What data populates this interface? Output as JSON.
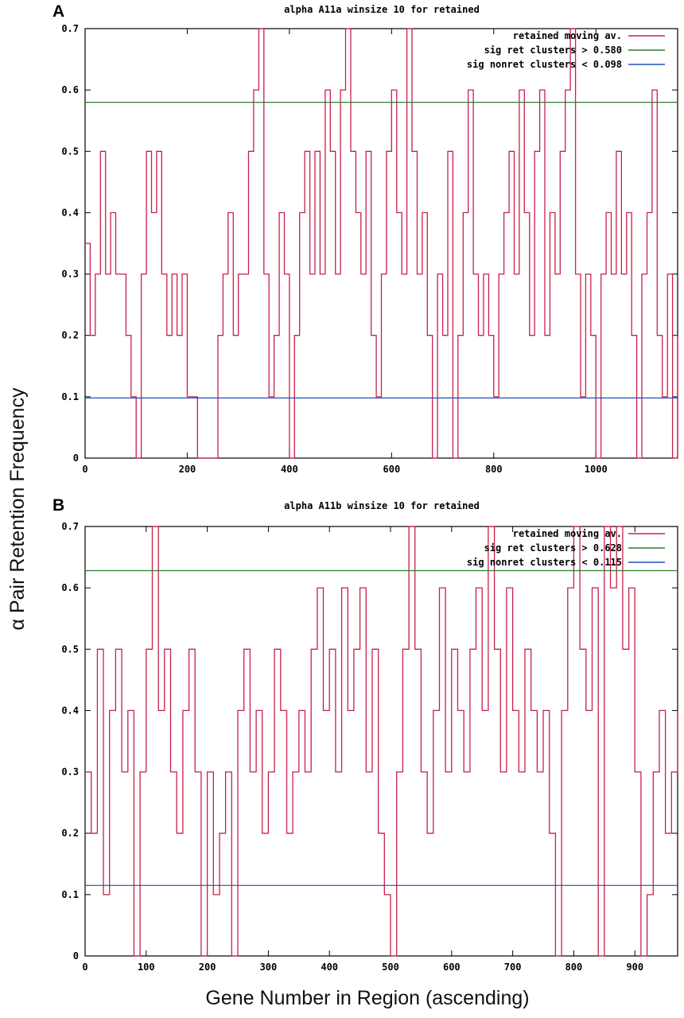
{
  "ylabel": "α Pair Retention Frequency",
  "xlabel": "Gene Number in Region (ascending)",
  "colors": {
    "retained": "#c8204a",
    "sig_ret": "#2e7d32",
    "sig_nonret": "#1f4fbf",
    "axis": "#000000"
  },
  "chart_data": [
    {
      "panel_label": "A",
      "type": "line",
      "title": "alpha A11a winsize 10 for retained",
      "xlim": [
        0,
        1160
      ],
      "ylim": [
        0,
        0.7
      ],
      "xticks": [
        0,
        200,
        400,
        600,
        800,
        1000
      ],
      "xtick_labels": [
        "0",
        "200",
        "400",
        "600",
        "800",
        "1000"
      ],
      "yticks": [
        0,
        0.1,
        0.2,
        0.3,
        0.4,
        0.5,
        0.6,
        0.7
      ],
      "ytick_labels": [
        "0",
        "0.1",
        "0.2",
        "0.3",
        "0.4",
        "0.5",
        "0.6",
        "0.7"
      ],
      "legend_position": "top-right",
      "legend": [
        "retained moving av.",
        "sig ret clusters > 0.580",
        "sig nonret clusters < 0.098"
      ],
      "thresholds": {
        "sig_ret": 0.58,
        "sig_nonret": 0.098
      },
      "series": [
        {
          "name": "retained moving av.",
          "x": [
            0,
            10,
            20,
            30,
            40,
            50,
            60,
            70,
            80,
            90,
            100,
            110,
            120,
            130,
            140,
            150,
            160,
            170,
            180,
            190,
            200,
            210,
            220,
            230,
            240,
            250,
            260,
            270,
            280,
            290,
            300,
            310,
            320,
            330,
            340,
            350,
            360,
            370,
            380,
            390,
            400,
            410,
            420,
            430,
            440,
            450,
            460,
            470,
            480,
            490,
            500,
            510,
            520,
            530,
            540,
            550,
            560,
            570,
            580,
            590,
            600,
            610,
            620,
            630,
            640,
            650,
            660,
            670,
            680,
            690,
            700,
            710,
            720,
            730,
            740,
            750,
            760,
            770,
            780,
            790,
            800,
            810,
            820,
            830,
            840,
            850,
            860,
            870,
            880,
            890,
            900,
            910,
            920,
            930,
            940,
            950,
            960,
            970,
            980,
            990,
            1000,
            1010,
            1020,
            1030,
            1040,
            1050,
            1060,
            1070,
            1080,
            1090,
            1100,
            1110,
            1120,
            1130,
            1140,
            1150,
            1160
          ],
          "y": [
            0.35,
            0.2,
            0.3,
            0.5,
            0.3,
            0.4,
            0.3,
            0.3,
            0.2,
            0.1,
            0.0,
            0.3,
            0.5,
            0.4,
            0.5,
            0.3,
            0.2,
            0.3,
            0.2,
            0.3,
            0.1,
            0.1,
            0.0,
            0.0,
            0.0,
            0.0,
            0.2,
            0.3,
            0.4,
            0.2,
            0.3,
            0.3,
            0.5,
            0.6,
            0.7,
            0.3,
            0.1,
            0.2,
            0.4,
            0.3,
            0.0,
            0.2,
            0.4,
            0.5,
            0.3,
            0.5,
            0.3,
            0.6,
            0.5,
            0.3,
            0.6,
            0.7,
            0.5,
            0.4,
            0.3,
            0.5,
            0.2,
            0.1,
            0.3,
            0.5,
            0.6,
            0.4,
            0.3,
            0.7,
            0.5,
            0.3,
            0.4,
            0.2,
            0.0,
            0.3,
            0.2,
            0.5,
            0.0,
            0.2,
            0.4,
            0.6,
            0.3,
            0.2,
            0.3,
            0.2,
            0.1,
            0.3,
            0.4,
            0.5,
            0.3,
            0.6,
            0.4,
            0.2,
            0.5,
            0.6,
            0.2,
            0.4,
            0.3,
            0.5,
            0.6,
            0.7,
            0.3,
            0.1,
            0.3,
            0.2,
            0.0,
            0.3,
            0.4,
            0.3,
            0.5,
            0.3,
            0.4,
            0.2,
            0.0,
            0.3,
            0.4,
            0.6,
            0.2,
            0.1,
            0.3,
            0.0,
            0.2
          ]
        },
        {
          "name": "sig ret clusters > 0.580",
          "x": [
            0,
            1160
          ],
          "y": [
            0.58,
            0.58
          ]
        },
        {
          "name": "sig nonret clusters < 0.098",
          "x": [
            0,
            1160
          ],
          "y": [
            0.098,
            0.098
          ]
        }
      ]
    },
    {
      "panel_label": "B",
      "type": "line",
      "title": "alpha A11b winsize 10 for retained",
      "xlim": [
        0,
        970
      ],
      "ylim": [
        0,
        0.7
      ],
      "xticks": [
        0,
        100,
        200,
        300,
        400,
        500,
        600,
        700,
        800,
        900
      ],
      "xtick_labels": [
        "0",
        "100",
        "200",
        "300",
        "400",
        "500",
        "600",
        "700",
        "800",
        "900"
      ],
      "yticks": [
        0,
        0.1,
        0.2,
        0.3,
        0.4,
        0.5,
        0.6,
        0.7
      ],
      "ytick_labels": [
        "0",
        "0.1",
        "0.2",
        "0.3",
        "0.4",
        "0.5",
        "0.6",
        "0.7"
      ],
      "legend_position": "top-right",
      "legend": [
        "retained moving av.",
        "sig ret clusters > 0.628",
        "sig nonret clusters < 0.115"
      ],
      "thresholds": {
        "sig_ret": 0.628,
        "sig_nonret": 0.115
      },
      "series": [
        {
          "name": "retained moving av.",
          "x": [
            0,
            10,
            20,
            30,
            40,
            50,
            60,
            70,
            80,
            90,
            100,
            110,
            120,
            130,
            140,
            150,
            160,
            170,
            180,
            190,
            200,
            210,
            220,
            230,
            240,
            250,
            260,
            270,
            280,
            290,
            300,
            310,
            320,
            330,
            340,
            350,
            360,
            370,
            380,
            390,
            400,
            410,
            420,
            430,
            440,
            450,
            460,
            470,
            480,
            490,
            500,
            510,
            520,
            530,
            540,
            550,
            560,
            570,
            580,
            590,
            600,
            610,
            620,
            630,
            640,
            650,
            660,
            670,
            680,
            690,
            700,
            710,
            720,
            730,
            740,
            750,
            760,
            770,
            780,
            790,
            800,
            810,
            820,
            830,
            840,
            850,
            860,
            870,
            880,
            890,
            900,
            910,
            920,
            930,
            940,
            950,
            960,
            970
          ],
          "y": [
            0.3,
            0.2,
            0.5,
            0.1,
            0.4,
            0.5,
            0.3,
            0.4,
            0.0,
            0.3,
            0.5,
            0.7,
            0.4,
            0.5,
            0.3,
            0.2,
            0.4,
            0.5,
            0.3,
            0.0,
            0.3,
            0.1,
            0.2,
            0.3,
            0.0,
            0.4,
            0.5,
            0.3,
            0.4,
            0.2,
            0.3,
            0.5,
            0.4,
            0.2,
            0.3,
            0.4,
            0.3,
            0.5,
            0.6,
            0.4,
            0.5,
            0.3,
            0.6,
            0.4,
            0.5,
            0.6,
            0.3,
            0.5,
            0.2,
            0.1,
            0.0,
            0.3,
            0.5,
            0.7,
            0.5,
            0.3,
            0.2,
            0.4,
            0.6,
            0.3,
            0.5,
            0.4,
            0.3,
            0.5,
            0.6,
            0.4,
            0.7,
            0.5,
            0.3,
            0.6,
            0.4,
            0.3,
            0.5,
            0.4,
            0.3,
            0.4,
            0.2,
            0.0,
            0.4,
            0.6,
            0.7,
            0.5,
            0.4,
            0.6,
            0.0,
            0.7,
            0.6,
            0.7,
            0.5,
            0.6,
            0.3,
            0.0,
            0.1,
            0.3,
            0.4,
            0.2,
            0.3,
            0.4
          ]
        },
        {
          "name": "sig ret clusters > 0.628",
          "x": [
            0,
            970
          ],
          "y": [
            0.628,
            0.628
          ]
        },
        {
          "name": "sig nonret clusters < 0.115",
          "x": [
            0,
            970
          ],
          "y": [
            0.115,
            0.115
          ]
        }
      ]
    }
  ]
}
